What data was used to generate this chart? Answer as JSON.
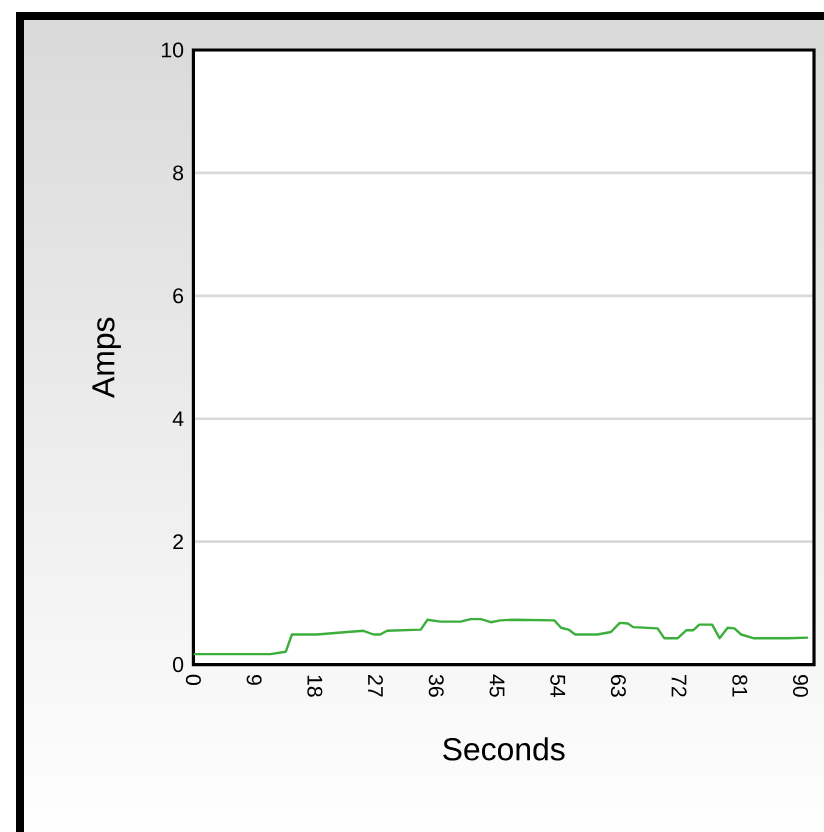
{
  "chart_data": {
    "type": "line",
    "xlabel": "Seconds",
    "ylabel": "Amps",
    "xlim": [
      0,
      92
    ],
    "ylim": [
      0,
      10
    ],
    "xticks": [
      0,
      9,
      18,
      27,
      36,
      45,
      54,
      63,
      72,
      81,
      90
    ],
    "yticks": [
      0,
      2,
      4,
      6,
      8,
      10
    ],
    "grid": "y",
    "marker": "none",
    "line_style": "solid",
    "series": [
      {
        "color": "#3cae3c",
        "x": [
          0,
          11.4,
          13.7,
          14.6,
          18.3,
          22.8,
          25.2,
          26.7,
          27.7,
          28.7,
          33.7,
          34.7,
          36.6,
          39.6,
          41.1,
          42.6,
          44.1,
          45.5,
          47.5,
          53.5,
          54.5,
          55.6,
          56.6,
          59.9,
          61.9,
          63.2,
          64.4,
          65.2,
          68.8,
          69.8,
          71.8,
          73.1,
          74.1,
          75.0,
          76.9,
          78.0,
          79.2,
          80.2,
          81.2,
          83.0,
          88.1,
          91.1
        ],
        "values": [
          0.17,
          0.17,
          0.21,
          0.49,
          0.49,
          0.53,
          0.55,
          0.49,
          0.49,
          0.55,
          0.57,
          0.73,
          0.7,
          0.7,
          0.74,
          0.74,
          0.69,
          0.72,
          0.73,
          0.72,
          0.6,
          0.57,
          0.49,
          0.49,
          0.53,
          0.68,
          0.67,
          0.61,
          0.59,
          0.43,
          0.43,
          0.56,
          0.56,
          0.65,
          0.65,
          0.43,
          0.6,
          0.59,
          0.49,
          0.43,
          0.43,
          0.44
        ]
      }
    ]
  }
}
